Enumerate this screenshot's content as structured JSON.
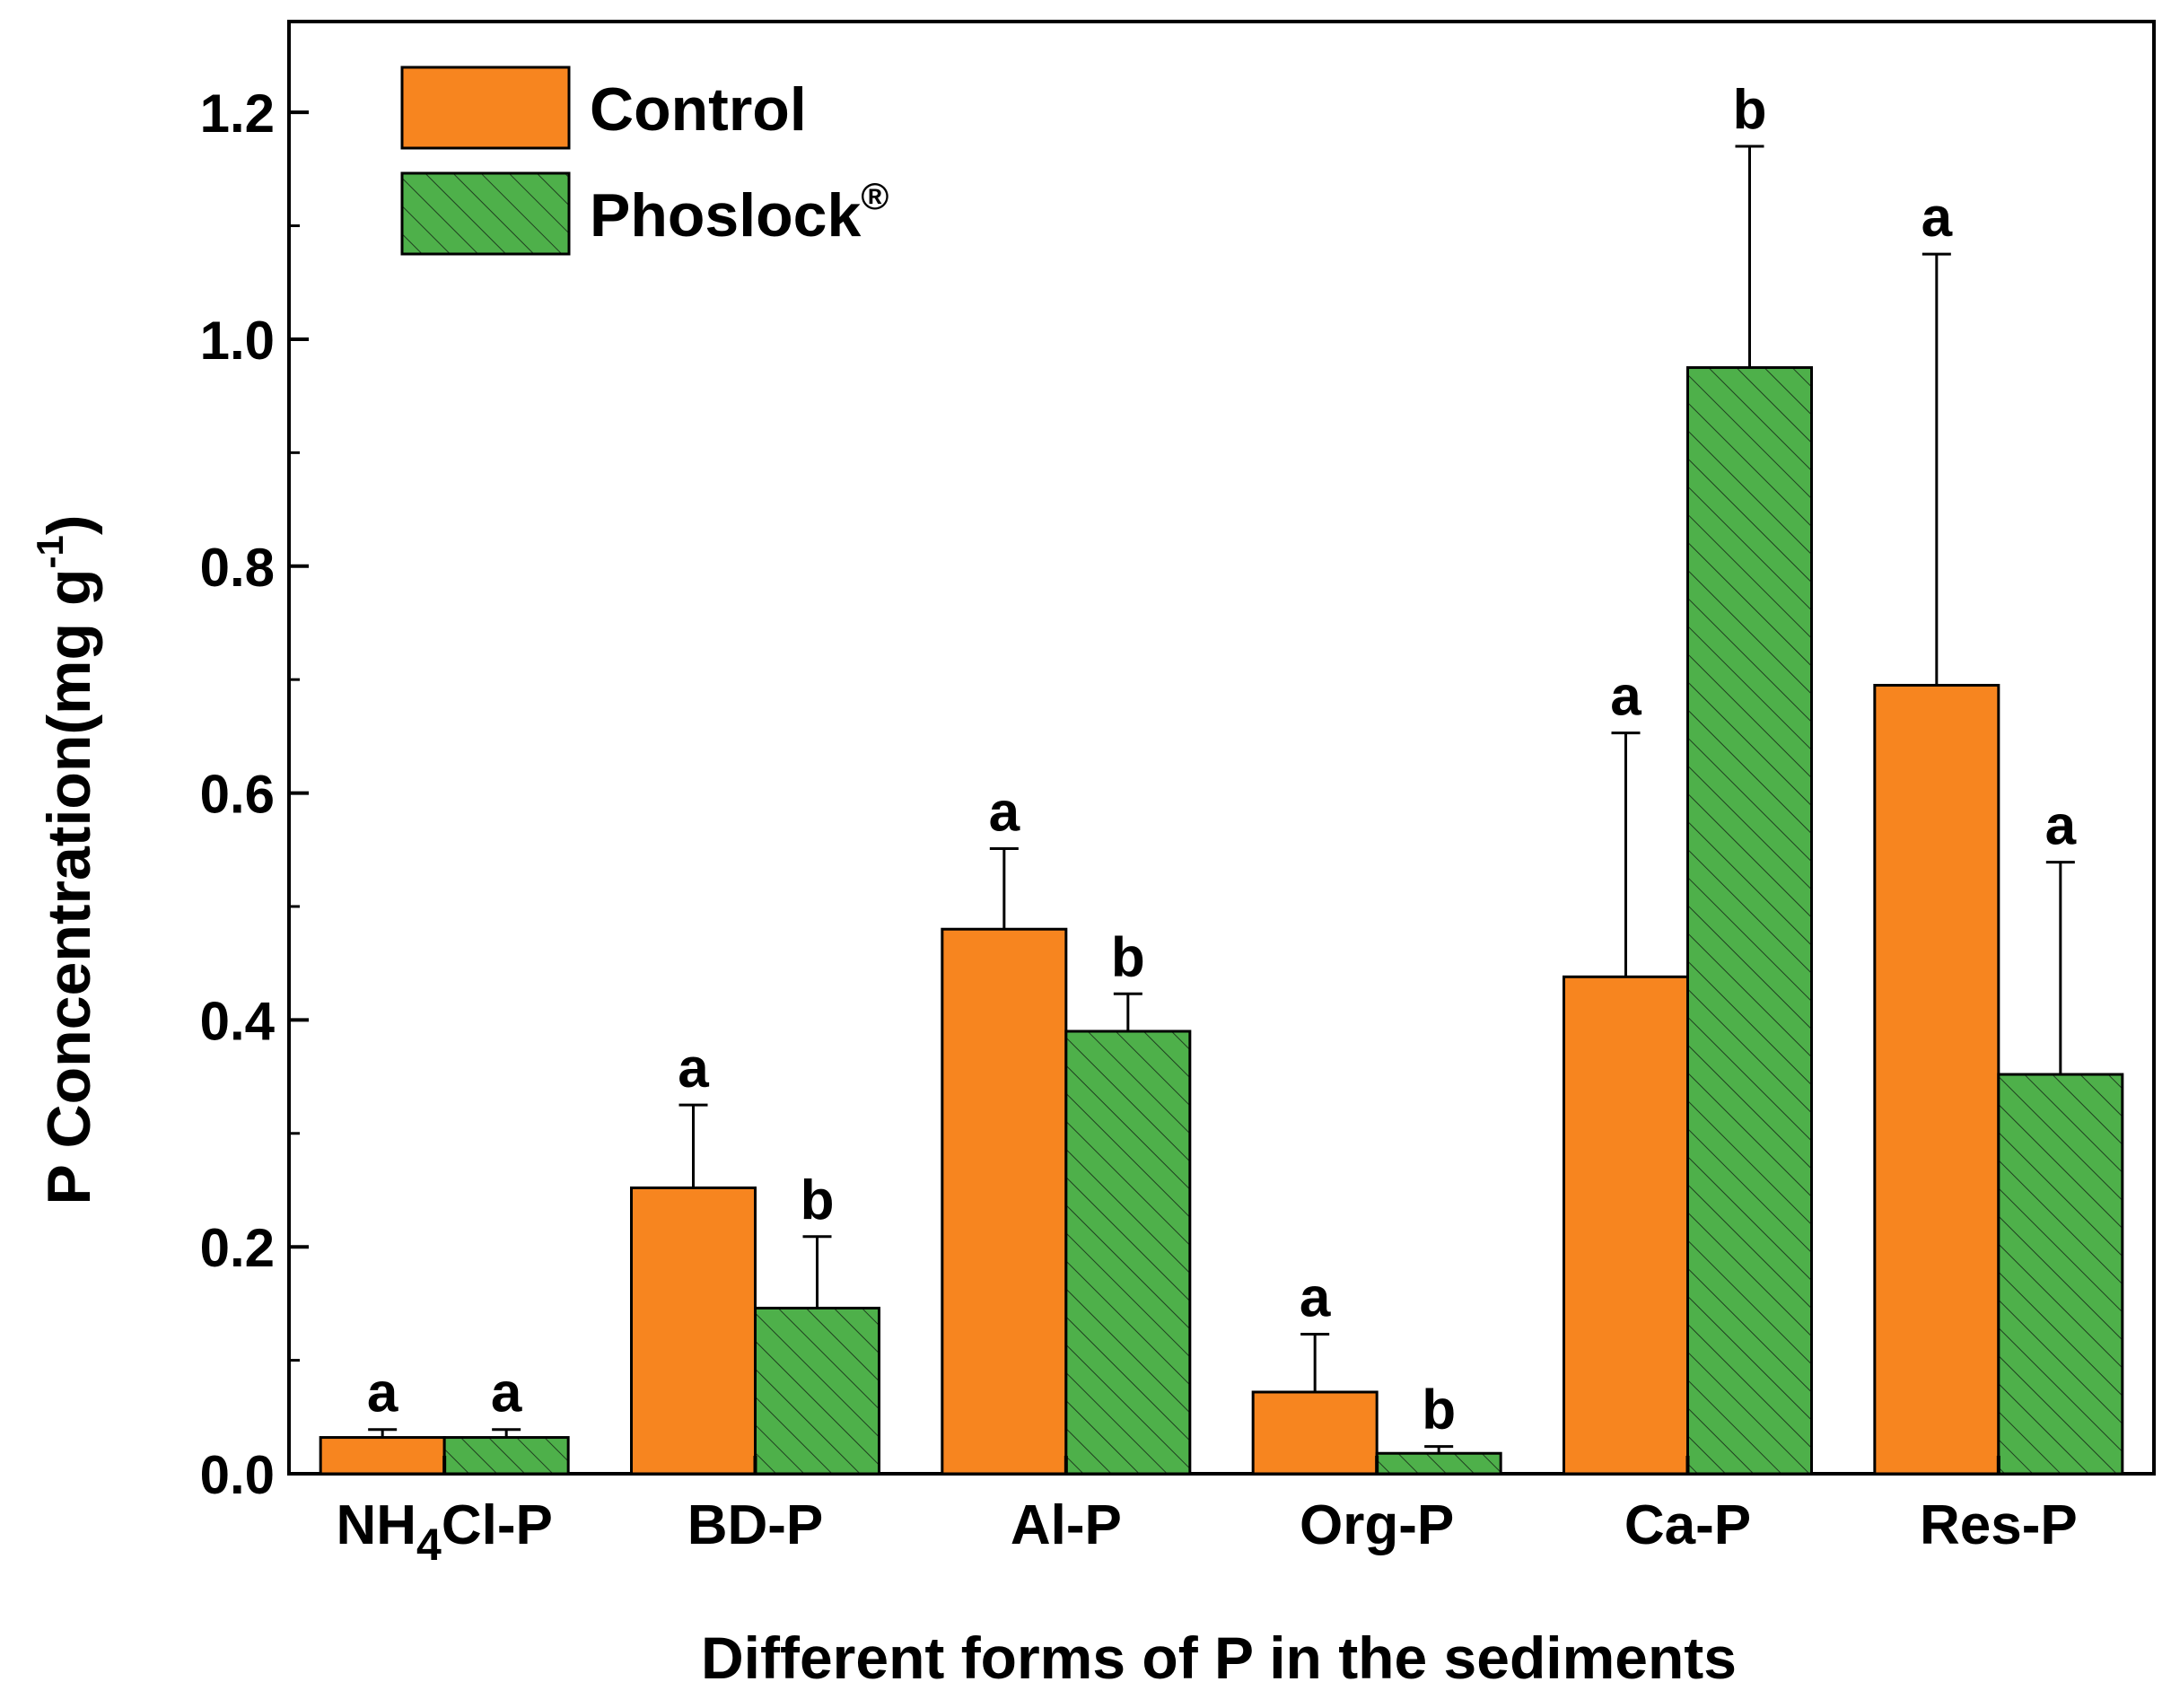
{
  "chart_data": {
    "type": "bar",
    "title": "",
    "xlabel": "Different forms of P in the sediments",
    "ylabel": "P Concentration(mg g",
    "ylabel_superscript": "-1",
    "ylabel_close": ")",
    "ylim": [
      0,
      1.28
    ],
    "yticks": [
      "0.0",
      "0.2",
      "0.4",
      "0.6",
      "0.8",
      "1.0",
      "1.2"
    ],
    "ytick_values": [
      0.0,
      0.2,
      0.4,
      0.6,
      0.8,
      1.0,
      1.2
    ],
    "grid": false,
    "legend_position": "top-left",
    "categories": [
      "NH4Cl-P",
      "BD-P",
      "Al-P",
      "Org-P",
      "Ca-P",
      "Res-P"
    ],
    "category_labels": [
      {
        "main": "NH",
        "sub": "4",
        "rest": "Cl-P"
      },
      {
        "main": "BD-P",
        "sub": "",
        "rest": ""
      },
      {
        "main": "Al-P",
        "sub": "",
        "rest": ""
      },
      {
        "main": "Org-P",
        "sub": "",
        "rest": ""
      },
      {
        "main": "Ca-P",
        "sub": "",
        "rest": ""
      },
      {
        "main": "Res-P",
        "sub": "",
        "rest": ""
      }
    ],
    "series": [
      {
        "name": "Control",
        "legend_label": "Control",
        "legend_superscript": "",
        "color": "#f7851f",
        "hatched": false,
        "values": [
          0.032,
          0.252,
          0.48,
          0.072,
          0.438,
          0.695
        ],
        "errors": [
          0.007,
          0.073,
          0.071,
          0.051,
          0.215,
          0.38
        ],
        "significance": [
          "a",
          "a",
          "a",
          "a",
          "a",
          "a"
        ]
      },
      {
        "name": "Phoslock®",
        "legend_label": "Phoslock",
        "legend_superscript": "®",
        "color": "#4eb04a",
        "hatched": true,
        "values": [
          0.032,
          0.146,
          0.39,
          0.018,
          0.975,
          0.352
        ],
        "errors": [
          0.007,
          0.063,
          0.033,
          0.006,
          0.195,
          0.187
        ],
        "significance": [
          "a",
          "b",
          "b",
          "b",
          "b",
          "a"
        ]
      }
    ]
  },
  "colors": {
    "axis": "#000000",
    "hatch_line": "#1f3f1f",
    "background": "#ffffff"
  }
}
